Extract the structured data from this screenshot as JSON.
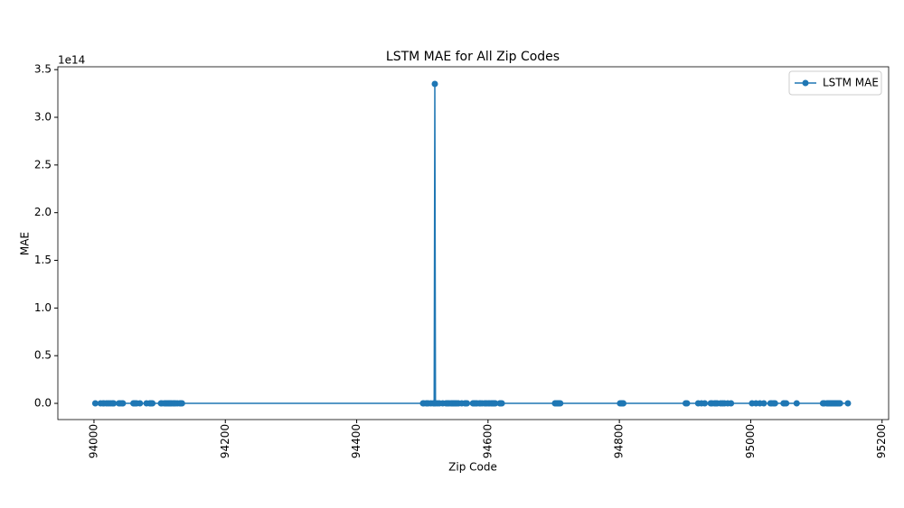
{
  "chart_data": {
    "type": "line",
    "title": "LSTM MAE for All Zip Codes",
    "x_label": "Zip Code",
    "y_label": "MAE",
    "y_offset_label": "1e14",
    "x": [
      94002,
      94010,
      94014,
      94015,
      94019,
      94022,
      94025,
      94028,
      94030,
      94038,
      94040,
      94043,
      94044,
      94060,
      94061,
      94062,
      94063,
      94065,
      94070,
      94080,
      94085,
      94086,
      94087,
      94089,
      94102,
      94103,
      94107,
      94109,
      94110,
      94112,
      94114,
      94115,
      94116,
      94117,
      94118,
      94121,
      94122,
      94124,
      94127,
      94131,
      94132,
      94134,
      94501,
      94502,
      94506,
      94507,
      94509,
      94513,
      94517,
      94518,
      94519,
      94520,
      94523,
      94526,
      94531,
      94536,
      94538,
      94539,
      94541,
      94544,
      94545,
      94546,
      94547,
      94549,
      94550,
      94551,
      94553,
      94555,
      94560,
      94565,
      94566,
      94568,
      94577,
      94578,
      94579,
      94580,
      94582,
      94583,
      94587,
      94588,
      94591,
      94595,
      94596,
      94598,
      94601,
      94602,
      94605,
      94606,
      94607,
      94608,
      94609,
      94610,
      94611,
      94618,
      94619,
      94621,
      94702,
      94703,
      94705,
      94706,
      94707,
      94708,
      94710,
      94801,
      94803,
      94804,
      94805,
      94806,
      94901,
      94903,
      94920,
      94925,
      94930,
      94939,
      94941,
      94945,
      94947,
      94949,
      94954,
      94957,
      94960,
      94965,
      94970,
      95002,
      95008,
      95014,
      95020,
      95030,
      95032,
      95035,
      95037,
      95050,
      95051,
      95054,
      95070,
      95110,
      95111,
      95112,
      95116,
      95117,
      95118,
      95119,
      95120,
      95121,
      95122,
      95123,
      95124,
      95125,
      95126,
      95127,
      95128,
      95129,
      95130,
      95131,
      95132,
      95133,
      95134,
      95135,
      95136,
      95148
    ],
    "series": [
      {
        "name": "LSTM MAE",
        "color": "#1f77b4",
        "values": [
          0,
          0,
          0,
          0,
          0,
          0,
          0,
          0,
          0,
          0,
          0,
          0,
          0,
          0,
          0,
          0,
          0,
          0,
          0,
          0,
          0,
          0,
          0,
          0,
          0,
          0,
          0,
          0,
          0,
          0,
          0,
          0,
          0,
          0,
          0,
          0,
          0,
          0,
          0,
          0,
          0,
          0,
          0,
          0,
          0,
          0,
          0,
          0,
          0,
          0,
          3.35,
          0,
          0,
          0,
          0,
          0,
          0,
          0,
          0,
          0,
          0,
          0,
          0,
          0,
          0,
          0,
          0,
          0,
          0,
          0,
          0,
          0,
          0,
          0,
          0,
          0,
          0,
          0,
          0,
          0,
          0,
          0,
          0,
          0,
          0,
          0,
          0,
          0,
          0,
          0,
          0,
          0,
          0,
          0,
          0,
          0,
          0,
          0,
          0,
          0,
          0,
          0,
          0,
          0,
          0,
          0,
          0,
          0,
          0,
          0,
          0,
          0,
          0,
          0,
          0,
          0,
          0,
          0,
          0,
          0,
          0,
          0,
          0,
          0,
          0,
          0,
          0,
          0,
          0,
          0,
          0,
          0,
          0,
          0,
          0,
          0,
          0,
          0,
          0,
          0,
          0,
          0,
          0,
          0,
          0,
          0,
          0,
          0,
          0,
          0,
          0,
          0,
          0,
          0,
          0,
          0,
          0,
          0,
          0,
          0
        ]
      }
    ],
    "xlim": [
      93945,
      95210
    ],
    "ylim": [
      -0.17,
      3.53
    ],
    "xticks": [
      94000,
      94200,
      94400,
      94600,
      94800,
      95000,
      95200
    ],
    "yticks": [
      {
        "value": 0,
        "label": "0.0"
      },
      {
        "value": 0.5,
        "label": "0.5"
      },
      {
        "value": 1,
        "label": "1.0"
      },
      {
        "value": 1.5,
        "label": "1.5"
      },
      {
        "value": 2,
        "label": "2.0"
      },
      {
        "value": 2.5,
        "label": "2.5"
      },
      {
        "value": 3,
        "label": "3.0"
      },
      {
        "value": 3.5,
        "label": "3.5"
      }
    ],
    "legend": "upper right",
    "grid": false
  }
}
